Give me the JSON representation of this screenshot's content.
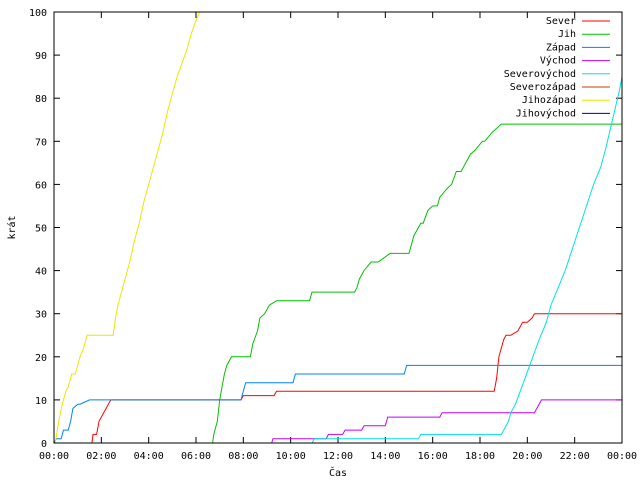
{
  "chart_data": {
    "type": "line",
    "title": "",
    "xlabel": "Čas",
    "ylabel": "krát",
    "xlim": [
      0,
      24
    ],
    "ylim": [
      0,
      100
    ],
    "x_ticks": [
      "00:00",
      "02:00",
      "04:00",
      "06:00",
      "08:00",
      "10:00",
      "12:00",
      "14:00",
      "16:00",
      "18:00",
      "20:00",
      "22:00",
      "00:00"
    ],
    "y_ticks": [
      0,
      10,
      20,
      30,
      40,
      50,
      60,
      70,
      80,
      90,
      100
    ],
    "grid": false,
    "legend_position": "top-right",
    "series": [
      {
        "name": "Sever",
        "color": "#ff0000",
        "x": [
          1.6,
          1.65,
          1.8,
          1.9,
          2.0,
          2.1,
          2.2,
          2.3,
          2.4,
          7.9,
          8.0,
          9.3,
          9.4,
          18.6,
          18.7,
          18.8,
          19.0,
          19.1,
          19.3,
          19.6,
          19.8,
          20.0,
          20.2,
          20.3,
          20.5,
          24.0
        ],
        "y": [
          0,
          2,
          2,
          5,
          6,
          7,
          8,
          9,
          10,
          10,
          11,
          11,
          12,
          12,
          15,
          20,
          24,
          25,
          25,
          26,
          28,
          28,
          29,
          30,
          30,
          30
        ]
      },
      {
        "name": "Jih",
        "color": "#00c000",
        "x": [
          6.7,
          6.75,
          6.9,
          7.0,
          7.1,
          7.2,
          7.3,
          7.4,
          7.5,
          8.3,
          8.4,
          8.6,
          8.7,
          8.9,
          9.1,
          9.4,
          10.8,
          10.9,
          12.7,
          12.8,
          12.9,
          13.1,
          13.4,
          13.7,
          14.2,
          14.5,
          15.0,
          15.1,
          15.2,
          15.5,
          15.6,
          15.8,
          16.0,
          16.2,
          16.3,
          16.6,
          16.8,
          17.0,
          17.2,
          17.4,
          17.6,
          17.8,
          18.1,
          18.2,
          18.5,
          18.7,
          18.9,
          24.0
        ],
        "y": [
          0,
          2,
          5,
          10,
          13,
          16,
          18,
          19,
          20,
          20,
          23,
          26,
          29,
          30,
          32,
          33,
          33,
          35,
          35,
          36,
          38,
          40,
          42,
          42,
          44,
          44,
          44,
          46,
          48,
          51,
          51,
          54,
          55,
          55,
          57,
          59,
          60,
          63,
          63,
          65,
          67,
          68,
          70,
          70,
          72,
          73,
          74,
          74
        ]
      },
      {
        "name": "Západ",
        "color": "#0080ff",
        "x": [
          0,
          0.1,
          0.3,
          0.4,
          0.6,
          0.7,
          0.8,
          1.0,
          1.1,
          1.5,
          1.6,
          7.9,
          8.0,
          8.1,
          10.1,
          10.2,
          14.8,
          14.9,
          24.0
        ],
        "y": [
          0,
          1,
          1,
          3,
          3,
          5,
          8,
          9,
          9,
          10,
          10,
          10,
          12,
          14,
          14,
          16,
          16,
          18,
          18
        ]
      },
      {
        "name": "Východ",
        "color": "#c000ff",
        "x": [
          9.2,
          9.25,
          10.5,
          10.6,
          11.5,
          11.6,
          12.2,
          12.3,
          13.0,
          13.1,
          14.0,
          14.1,
          16.3,
          16.4,
          20.3,
          20.4,
          20.6,
          24.0
        ],
        "y": [
          0,
          1,
          1,
          1,
          1,
          2,
          2,
          3,
          3,
          4,
          4,
          6,
          6,
          7,
          7,
          8,
          10,
          10
        ]
      },
      {
        "name": "Severovýchod",
        "color": "#00e0e0",
        "x": [
          10.9,
          11.0,
          15.4,
          15.5,
          18.9,
          19.0,
          19.2,
          19.3,
          19.5,
          19.7,
          19.9,
          20.1,
          20.3,
          20.5,
          20.8,
          21.0,
          21.3,
          21.6,
          21.9,
          22.2,
          22.5,
          22.8,
          23.1,
          23.3,
          23.6,
          23.9,
          24.0
        ],
        "y": [
          0,
          1,
          1,
          2,
          2,
          3,
          5,
          7,
          9,
          12,
          15,
          18,
          21,
          24,
          28,
          32,
          36,
          40,
          45,
          50,
          55,
          60,
          64,
          68,
          75,
          82,
          85
        ]
      },
      {
        "name": "Severozápad",
        "color": "#c04000",
        "x": [],
        "y": []
      },
      {
        "name": "Jihozápad",
        "color": "#e8e800",
        "x": [
          0.05,
          0.2,
          0.35,
          0.5,
          0.6,
          0.75,
          0.9,
          1.0,
          1.1,
          1.25,
          1.4,
          1.5,
          2.5,
          2.6,
          2.7,
          2.85,
          3.0,
          3.2,
          3.4,
          3.6,
          3.8,
          4.0,
          4.2,
          4.4,
          4.6,
          4.8,
          5.0,
          5.2,
          5.4,
          5.6,
          5.8,
          6.0,
          6.15,
          6.2
        ],
        "y": [
          0,
          5,
          9,
          12,
          13,
          16,
          16,
          18,
          20,
          22,
          25,
          25,
          25,
          29,
          32,
          35,
          38,
          42,
          47,
          51,
          56,
          60,
          64,
          68,
          72,
          77,
          81,
          85,
          88,
          91,
          95,
          98,
          100,
          100
        ]
      },
      {
        "name": "Jihovýchod",
        "color": "#000090",
        "x": [],
        "y": []
      }
    ]
  }
}
